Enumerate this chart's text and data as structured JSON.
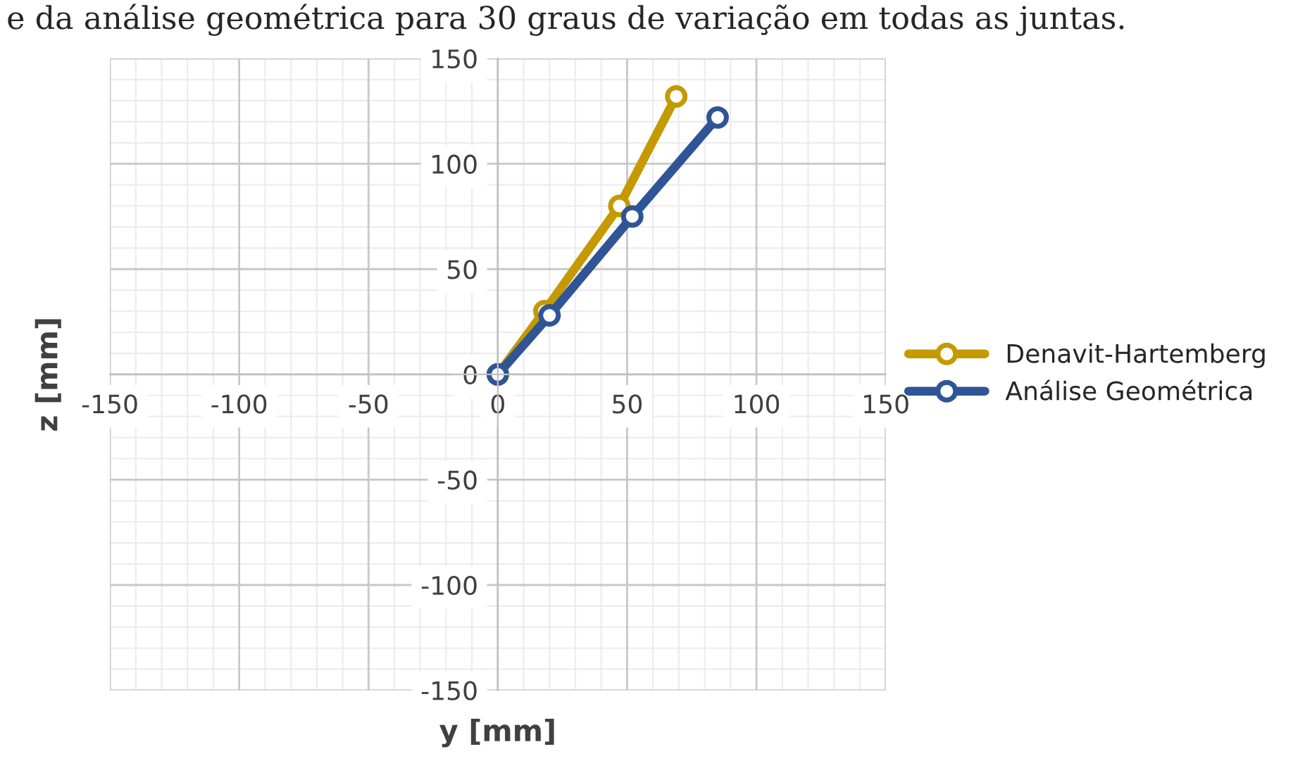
{
  "chart_data": {
    "type": "line",
    "xlabel": "y [mm]",
    "ylabel": "z [mm]",
    "annotations": [
      "e da análise geométrica para 30 graus de variação em todas as juntas."
    ],
    "series": [
      {
        "name": "Denavit-Hartemberg",
        "color": "#c49a00",
        "x": [
          0,
          18,
          47,
          69
        ],
        "values": [
          0,
          30,
          80,
          132
        ]
      },
      {
        "name": "Análise Geométrica",
        "color": "#2f5597",
        "x": [
          0,
          20,
          52,
          85
        ],
        "values": [
          0,
          28,
          75,
          122
        ]
      }
    ],
    "xlim": [
      -150,
      150
    ],
    "xticks": [
      -150,
      -100,
      -50,
      0,
      50,
      100,
      150
    ],
    "ylim": [
      -150,
      150
    ],
    "yticks": [
      -150,
      -100,
      -50,
      0,
      50,
      100,
      150
    ],
    "grid": true,
    "legend": "right",
    "marker": "circle",
    "line_style": "solid"
  }
}
